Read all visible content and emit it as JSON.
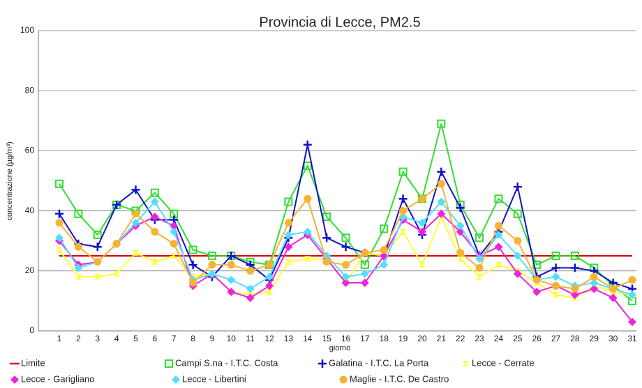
{
  "chart_data": {
    "type": "line",
    "title": "Provincia di Lecce, PM2.5",
    "xlabel": "giorno",
    "ylabel": "concentrazione (µg/m³)",
    "categories": [
      1,
      2,
      3,
      4,
      5,
      6,
      7,
      8,
      9,
      10,
      11,
      12,
      13,
      14,
      15,
      16,
      17,
      18,
      19,
      20,
      21,
      22,
      23,
      24,
      25,
      26,
      27,
      28,
      29,
      30,
      31
    ],
    "ylim": [
      0,
      100
    ],
    "yticks": [
      0,
      20,
      40,
      60,
      80,
      100
    ],
    "grid": true,
    "legend": "bottom",
    "series": [
      {
        "name": "Limite",
        "color": "#dd1111",
        "marker": "none",
        "values": [
          25,
          25,
          25,
          25,
          25,
          25,
          25,
          25,
          25,
          25,
          25,
          25,
          25,
          25,
          25,
          25,
          25,
          25,
          25,
          25,
          25,
          25,
          25,
          25,
          25,
          25,
          25,
          25,
          25,
          25,
          25
        ]
      },
      {
        "name": "Campi S.na - I.T.C.  Costa",
        "color": "#33dd33",
        "marker": "square",
        "values": [
          49,
          39,
          32,
          42,
          40,
          46,
          39,
          27,
          25,
          25,
          23,
          22,
          43,
          55,
          38,
          31,
          22,
          34,
          53,
          44,
          69,
          42,
          31,
          44,
          39,
          22,
          25,
          25,
          21,
          15,
          10
        ]
      },
      {
        "name": "Galatina - I.T.C.  La Porta",
        "color": "#1111cc",
        "marker": "plus",
        "values": [
          39,
          29,
          28,
          42,
          47,
          37,
          37,
          22,
          18,
          25,
          22,
          17,
          31,
          62,
          31,
          28,
          26,
          25,
          44,
          32,
          53,
          41,
          25,
          33,
          48,
          18,
          21,
          21,
          20,
          16,
          14
        ]
      },
      {
        "name": "Lecce - Cerrate",
        "color": "#ffff33",
        "marker": "bowtie",
        "values": [
          27,
          18,
          18,
          19,
          26,
          23,
          25,
          18,
          19,
          13,
          12,
          13,
          23,
          24,
          24,
          16,
          26,
          25,
          33,
          22,
          38,
          24,
          18,
          22,
          20,
          16,
          12,
          11,
          15,
          13,
          12
        ]
      },
      {
        "name": "Lecce - Garigliano",
        "color": "#ee22dd",
        "marker": "diamond",
        "values": [
          30,
          22,
          23,
          29,
          35,
          38,
          35,
          15,
          19,
          13,
          11,
          15,
          28,
          32,
          24,
          16,
          16,
          25,
          37,
          33,
          39,
          33,
          25,
          28,
          19,
          13,
          15,
          12,
          14,
          11,
          3
        ]
      },
      {
        "name": "Lecce - Libertini",
        "color": "#55ddff",
        "marker": "diamond",
        "values": [
          31,
          21,
          23,
          29,
          36,
          43,
          33,
          17,
          19,
          17,
          14,
          18,
          32,
          33,
          25,
          18,
          19,
          22,
          38,
          36,
          43,
          35,
          24,
          32,
          25,
          17,
          18,
          15,
          16,
          14,
          12
        ]
      },
      {
        "name": "Maglie - I.T.C. De Castro",
        "color": "#f5b333",
        "marker": "circle",
        "values": [
          36,
          28,
          23,
          29,
          39,
          33,
          29,
          16,
          22,
          22,
          20,
          22,
          36,
          44,
          23,
          22,
          26,
          27,
          40,
          44,
          49,
          26,
          21,
          35,
          30,
          17,
          15,
          14,
          18,
          14,
          17
        ]
      }
    ]
  }
}
